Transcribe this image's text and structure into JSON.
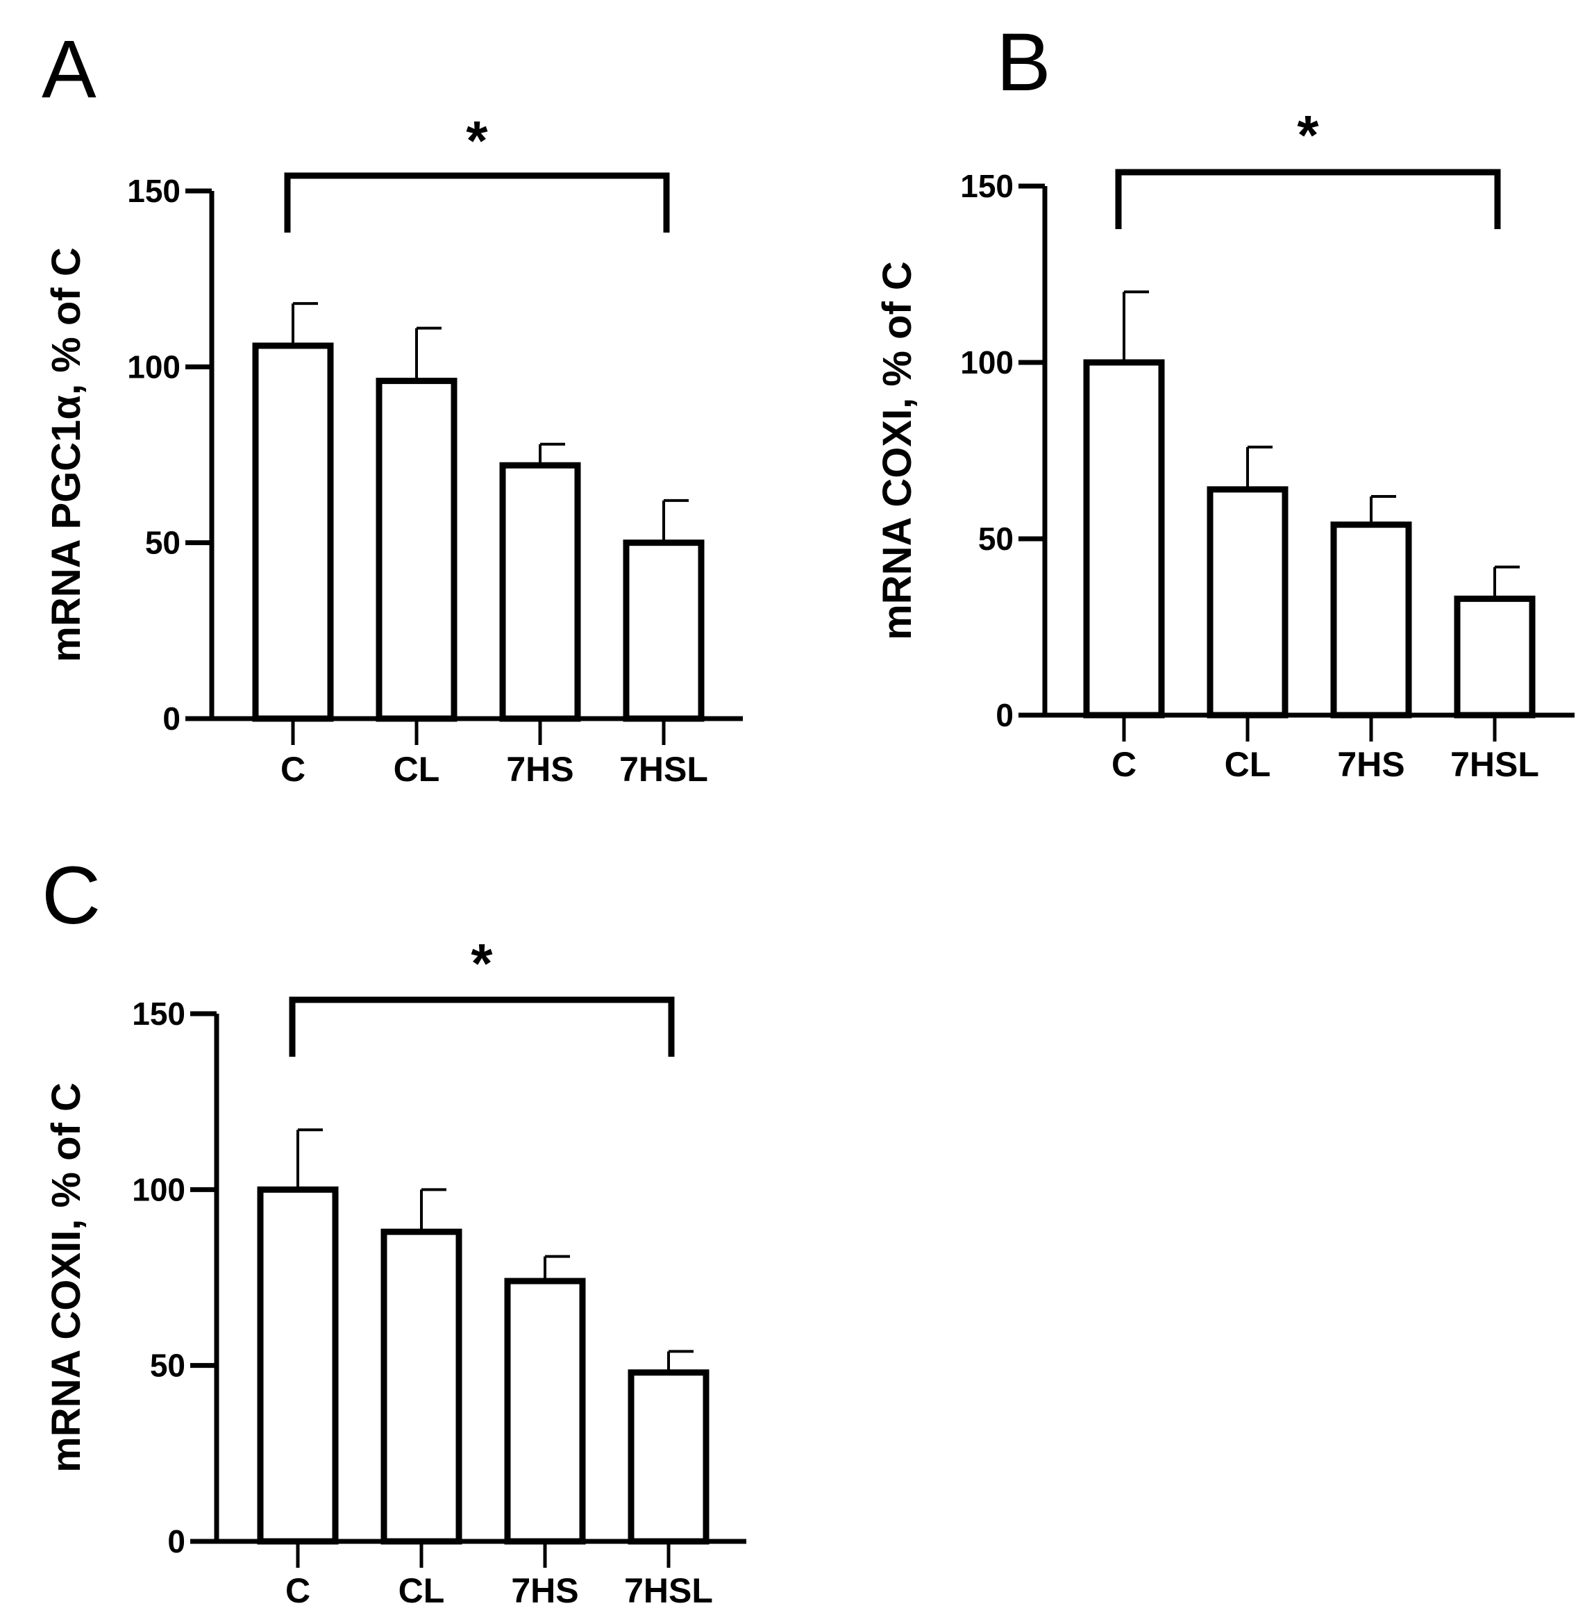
{
  "chart_data": [
    {
      "type": "bar",
      "panel": "A",
      "categories": [
        "C",
        "CL",
        "7HS",
        "7HSL"
      ],
      "values": [
        106,
        96,
        72,
        50
      ],
      "errors": [
        12,
        15,
        6,
        12
      ],
      "ylabel": "mRNA PGC1α, % of C",
      "xlabel": "",
      "ylim": [
        0,
        150
      ],
      "yticks": [
        0,
        50,
        100,
        150
      ],
      "significance": [
        {
          "from": "C",
          "to": "7HSL",
          "label": "*"
        }
      ]
    },
    {
      "type": "bar",
      "panel": "B",
      "categories": [
        "C",
        "CL",
        "7HS",
        "7HSL"
      ],
      "values": [
        100,
        64,
        54,
        33
      ],
      "errors": [
        20,
        12,
        8,
        9
      ],
      "ylabel": "mRNA COXI, % of C",
      "xlabel": "",
      "ylim": [
        0,
        150
      ],
      "yticks": [
        0,
        50,
        100,
        150
      ],
      "significance": [
        {
          "from": "C",
          "to": "7HSL",
          "label": "*"
        }
      ]
    },
    {
      "type": "bar",
      "panel": "C",
      "categories": [
        "C",
        "CL",
        "7HS",
        "7HSL"
      ],
      "values": [
        100,
        88,
        74,
        48
      ],
      "errors": [
        17,
        12,
        7,
        6
      ],
      "ylabel": "mRNA COXII, % of C",
      "xlabel": "",
      "ylim": [
        0,
        150
      ],
      "yticks": [
        0,
        50,
        100,
        150
      ],
      "significance": [
        {
          "from": "C",
          "to": "7HSL",
          "label": "*"
        }
      ]
    }
  ]
}
